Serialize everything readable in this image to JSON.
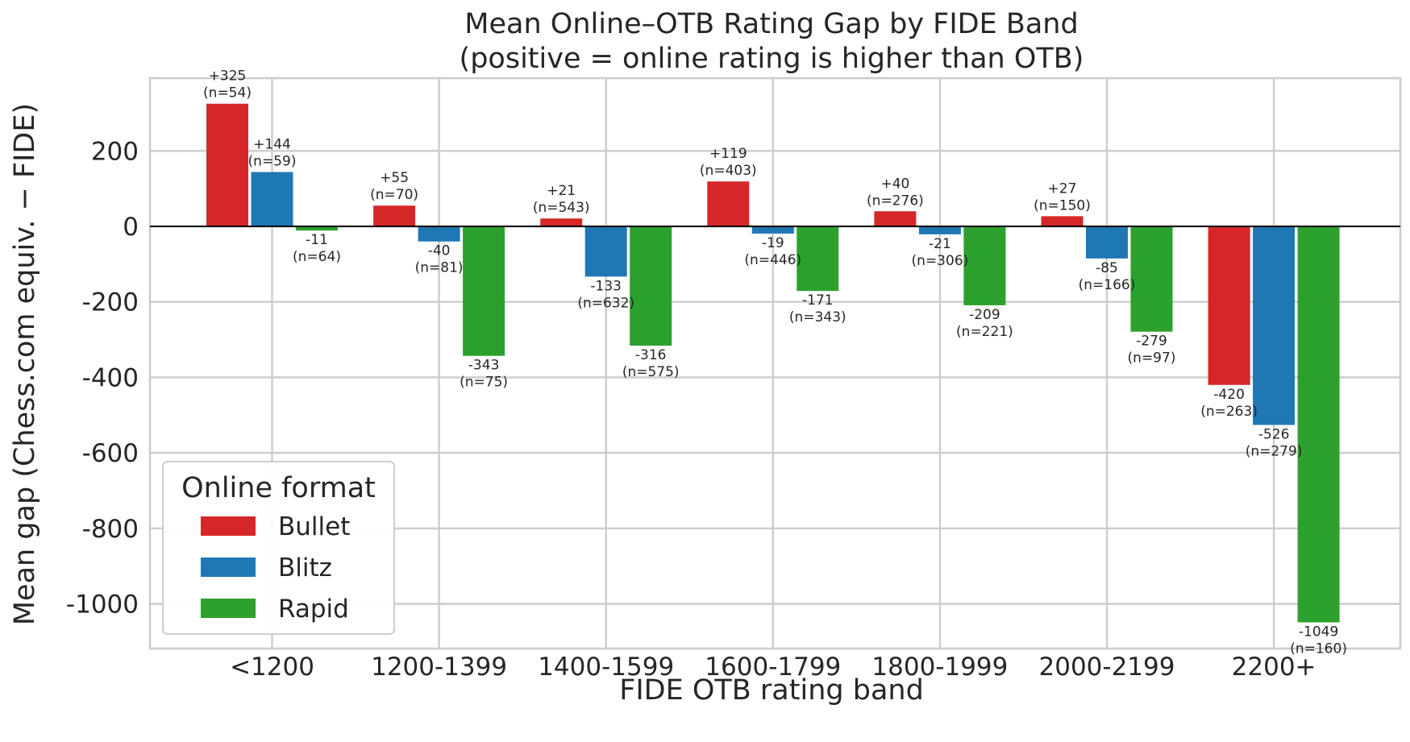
{
  "chart_data": {
    "type": "bar",
    "title": "Mean Online–OTB Rating Gap by FIDE Band",
    "subtitle": "(positive = online rating is higher than OTB)",
    "xlabel": "FIDE OTB rating band",
    "ylabel": "Mean gap (Chess.com equiv. − FIDE)",
    "categories": [
      "<1200",
      "1200-1399",
      "1400-1599",
      "1600-1799",
      "1800-1999",
      "2000-2199",
      "2200+"
    ],
    "series": [
      {
        "name": "Bullet",
        "color": "#d62728",
        "values": [
          325,
          55,
          21,
          119,
          40,
          27,
          -420
        ],
        "n": [
          54,
          70,
          543,
          403,
          276,
          150,
          263
        ]
      },
      {
        "name": "Blitz",
        "color": "#1f77b4",
        "values": [
          144,
          -40,
          -133,
          -19,
          -21,
          -85,
          -526
        ],
        "n": [
          59,
          81,
          632,
          446,
          306,
          166,
          279
        ]
      },
      {
        "name": "Rapid",
        "color": "#2ca02c",
        "values": [
          -11,
          -343,
          -316,
          -171,
          -209,
          -279,
          -1049
        ],
        "n": [
          64,
          75,
          575,
          343,
          221,
          97,
          160
        ]
      }
    ],
    "value_labels": [
      [
        "+325",
        "+55",
        "+21",
        "+119",
        "+40",
        "+27",
        "-420"
      ],
      [
        "+144",
        "-40",
        "-133",
        "-19",
        "-21",
        "-85",
        "-526"
      ],
      [
        "-11",
        "-343",
        "-316",
        "-171",
        "-209",
        "-279",
        "-1049"
      ]
    ],
    "n_labels": [
      [
        "(n=54)",
        "(n=70)",
        "(n=543)",
        "(n=403)",
        "(n=276)",
        "(n=150)",
        "(n=263)"
      ],
      [
        "(n=59)",
        "(n=81)",
        "(n=632)",
        "(n=446)",
        "(n=306)",
        "(n=166)",
        "(n=279)"
      ],
      [
        "(n=64)",
        "(n=75)",
        "(n=575)",
        "(n=343)",
        "(n=221)",
        "(n=97)",
        "(n=160)"
      ]
    ],
    "yticks": [
      200,
      0,
      -200,
      -400,
      -600,
      -800,
      -1000
    ],
    "ylim": [
      -1120,
      400
    ],
    "grid": true,
    "legend": {
      "title": "Online format",
      "position": "lower-left"
    }
  }
}
